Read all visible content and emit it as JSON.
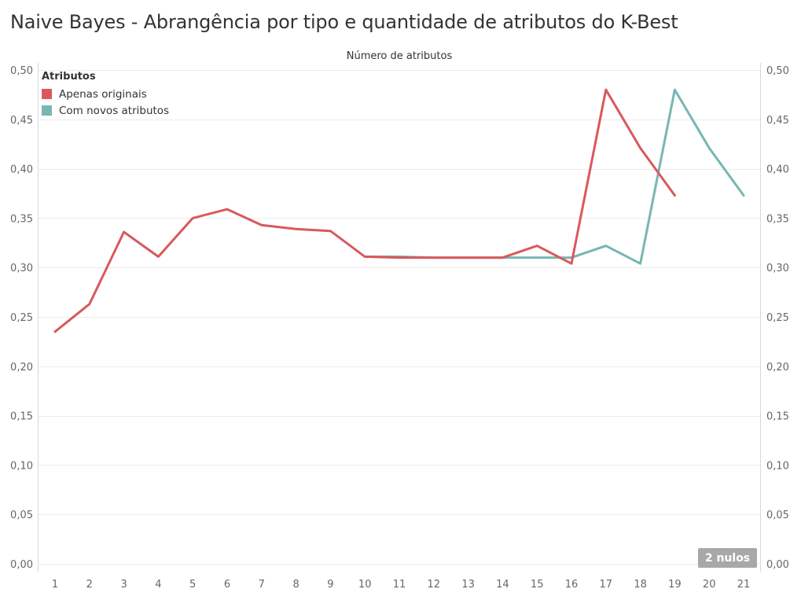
{
  "title": "Naive Bayes - Abrangência por tipo e quantidade de atributos do K-Best",
  "nulls_badge": "2 nulos",
  "colors": {
    "orig": "#d9595b",
    "novos": "#76b7b2"
  },
  "chart_data": {
    "type": "line",
    "title": "Naive Bayes - Abrangência por tipo e quantidade de atributos do K-Best",
    "xlabel": "Número de atributos",
    "ylabel": "",
    "x": [
      1,
      2,
      3,
      4,
      5,
      6,
      7,
      8,
      9,
      10,
      11,
      12,
      13,
      14,
      15,
      16,
      17,
      18,
      19,
      20,
      21
    ],
    "ylim": [
      0,
      0.5
    ],
    "yticks": [
      0,
      0.05,
      0.1,
      0.15,
      0.2,
      0.25,
      0.3,
      0.35,
      0.4,
      0.45,
      0.5
    ],
    "ytick_labels": [
      "0,00",
      "0,05",
      "0,10",
      "0,15",
      "0,20",
      "0,25",
      "0,30",
      "0,35",
      "0,40",
      "0,45",
      "0,50"
    ],
    "legend_title": "Atributos",
    "legend_position": "top-left",
    "grid": true,
    "series": [
      {
        "name": "Com novos atributos",
        "color": "#76b7b2",
        "values": [
          null,
          null,
          null,
          null,
          null,
          null,
          null,
          null,
          null,
          0.311,
          0.311,
          0.31,
          0.31,
          0.31,
          0.31,
          0.31,
          0.322,
          0.304,
          0.48,
          0.421,
          0.373
        ]
      },
      {
        "name": "Apenas originais",
        "color": "#d9595b",
        "values": [
          0.235,
          0.263,
          0.336,
          0.311,
          0.35,
          0.359,
          0.343,
          0.339,
          0.337,
          0.311,
          0.31,
          0.31,
          0.31,
          0.31,
          0.322,
          0.304,
          0.48,
          0.421,
          0.373,
          null,
          null
        ]
      }
    ]
  }
}
